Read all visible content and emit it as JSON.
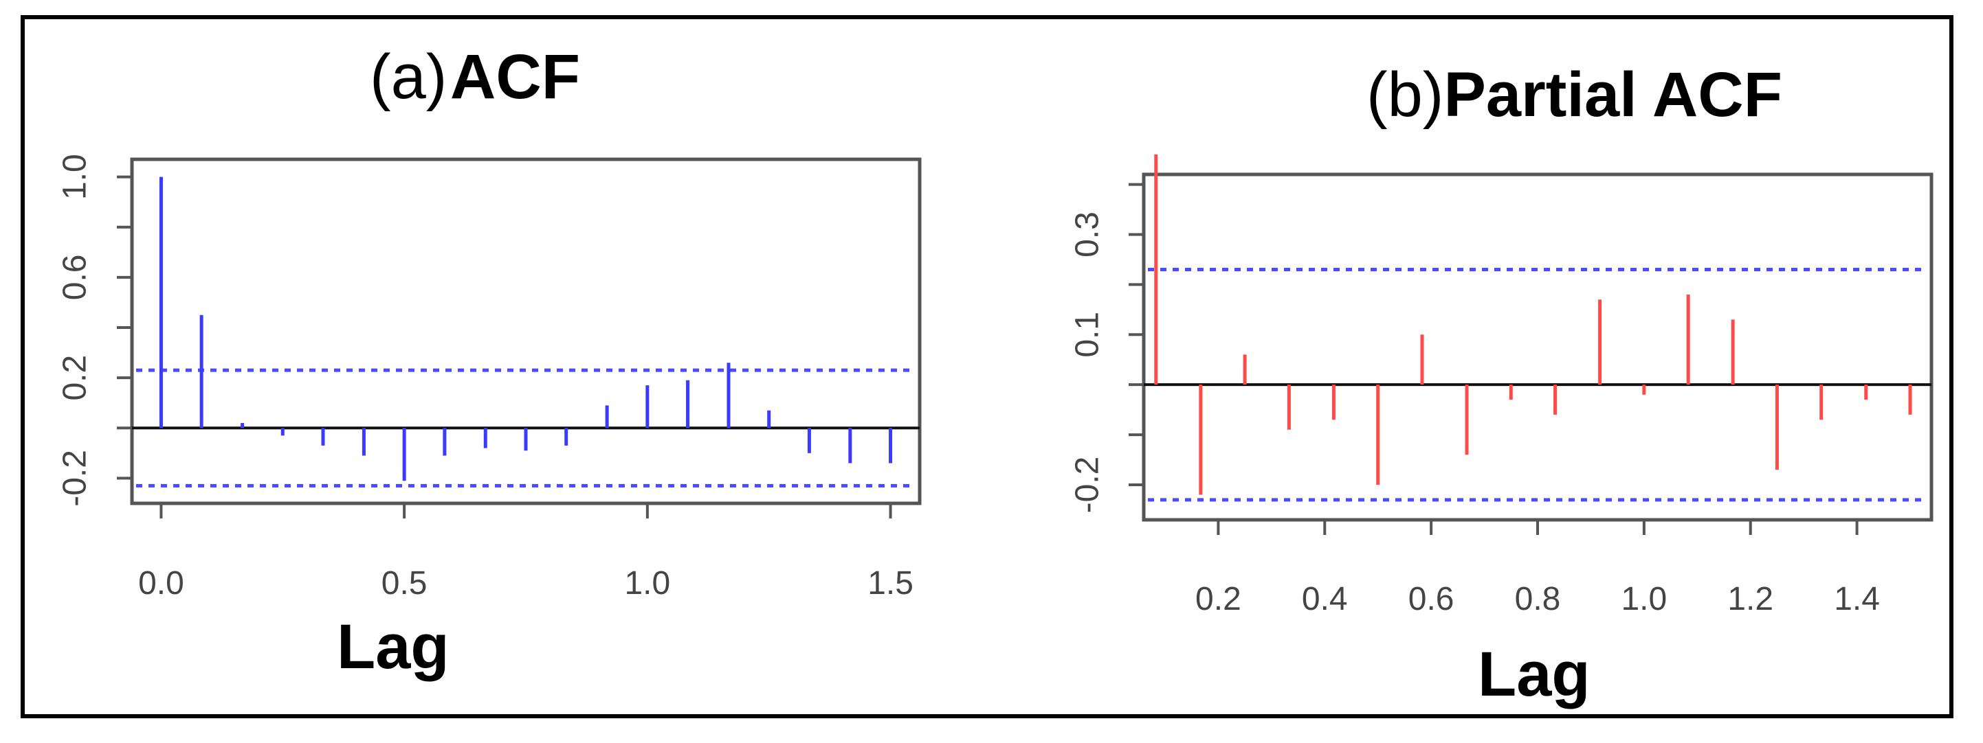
{
  "chart_data": [
    {
      "type": "bar",
      "subtype": "acf-correlogram",
      "title_prefix": "(a)",
      "title": "ACF",
      "xlabel": "Lag",
      "ylabel": "",
      "xlim": [
        -0.06,
        1.56
      ],
      "ylim": [
        -0.3,
        1.07
      ],
      "x_ticks": [
        "0.0",
        "0.5",
        "1.0",
        "1.5"
      ],
      "y_ticks": [
        "1.0",
        "0.6",
        "0.2",
        "-0.2"
      ],
      "confidence_band": 0.23,
      "color": "#3b3bff",
      "band_color": "#4a4aff",
      "lags": [
        0.0,
        0.083,
        0.167,
        0.25,
        0.333,
        0.417,
        0.5,
        0.583,
        0.667,
        0.75,
        0.833,
        0.917,
        1.0,
        1.083,
        1.167,
        1.25,
        1.333,
        1.417,
        1.5
      ],
      "values": [
        1.0,
        0.45,
        0.02,
        -0.03,
        -0.07,
        -0.11,
        -0.21,
        -0.11,
        -0.08,
        -0.09,
        -0.07,
        0.09,
        0.17,
        0.19,
        0.26,
        0.07,
        -0.1,
        -0.14,
        -0.14
      ]
    },
    {
      "type": "bar",
      "subtype": "pacf-correlogram",
      "title_prefix": "(b)",
      "title": "Partial ACF",
      "xlabel": "Lag",
      "ylabel": "",
      "xlim": [
        0.06,
        1.54
      ],
      "ylim": [
        -0.27,
        0.42
      ],
      "x_ticks": [
        "0.2",
        "0.4",
        "0.6",
        "0.8",
        "1.0",
        "1.2",
        "1.4"
      ],
      "y_ticks": [
        "0.3",
        "0.1",
        "-0.2"
      ],
      "confidence_band": 0.23,
      "color": "#ff4a4a",
      "band_color": "#4a4aff",
      "lags": [
        0.083,
        0.167,
        0.25,
        0.333,
        0.417,
        0.5,
        0.583,
        0.667,
        0.75,
        0.833,
        0.917,
        1.0,
        1.083,
        1.167,
        1.25,
        1.333,
        1.417,
        1.5
      ],
      "values": [
        0.46,
        -0.22,
        0.06,
        -0.09,
        -0.07,
        -0.2,
        0.1,
        -0.14,
        -0.03,
        -0.06,
        0.17,
        -0.02,
        0.18,
        0.13,
        -0.17,
        -0.07,
        -0.03,
        -0.06
      ]
    }
  ]
}
